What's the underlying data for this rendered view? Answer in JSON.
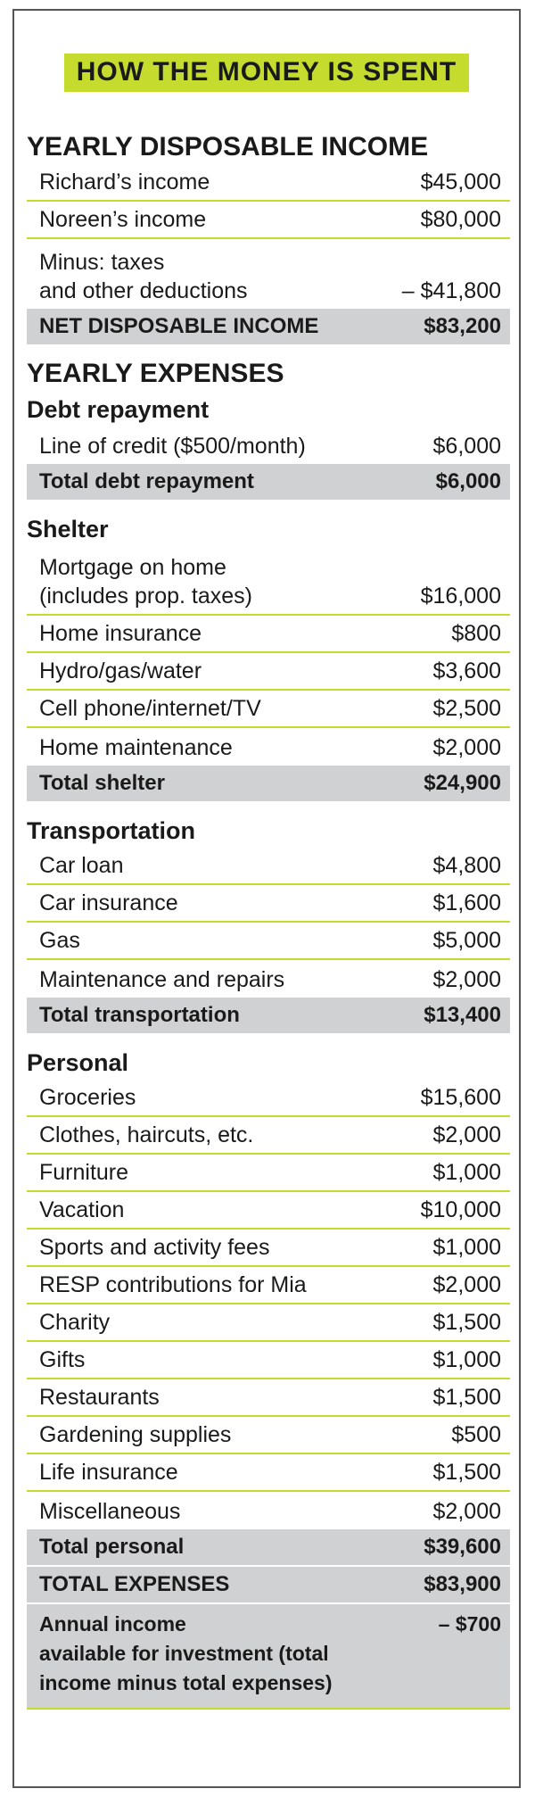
{
  "title": "HOW THE MONEY IS SPENT",
  "income": {
    "heading": "YEARLY DISPOSABLE INCOME",
    "rows": [
      {
        "label": "Richard’s income",
        "value": "$45,000"
      },
      {
        "label": "Noreen’s income",
        "value": "$80,000"
      },
      {
        "label": "Minus: taxes\nand other deductions",
        "value": "– $41,800"
      }
    ],
    "total": {
      "label": "NET DISPOSABLE INCOME",
      "value": "$83,200"
    }
  },
  "expenses_heading": "YEARLY EXPENSES",
  "debt": {
    "heading": "Debt repayment",
    "rows": [
      {
        "label": "Line of credit ($500/month)",
        "value": "$6,000"
      }
    ],
    "total": {
      "label": "Total debt repayment",
      "value": "$6,000"
    }
  },
  "shelter": {
    "heading": "Shelter",
    "rows": [
      {
        "label": "Mortgage on home\n(includes prop. taxes)",
        "value": "$16,000"
      },
      {
        "label": "Home insurance",
        "value": "$800"
      },
      {
        "label": "Hydro/gas/water",
        "value": "$3,600"
      },
      {
        "label": "Cell phone/internet/TV",
        "value": "$2,500"
      },
      {
        "label": "Home maintenance",
        "value": "$2,000"
      }
    ],
    "total": {
      "label": "Total shelter",
      "value": "$24,900"
    }
  },
  "transport": {
    "heading": "Transportation",
    "rows": [
      {
        "label": "Car loan",
        "value": "$4,800"
      },
      {
        "label": "Car insurance",
        "value": "$1,600"
      },
      {
        "label": "Gas",
        "value": "$5,000"
      },
      {
        "label": "Maintenance and repairs",
        "value": "$2,000"
      }
    ],
    "total": {
      "label": "Total transportation",
      "value": "$13,400"
    }
  },
  "personal": {
    "heading": "Personal",
    "rows": [
      {
        "label": "Groceries",
        "value": "$15,600"
      },
      {
        "label": "Clothes, haircuts, etc.",
        "value": "$2,000"
      },
      {
        "label": "Furniture",
        "value": "$1,000"
      },
      {
        "label": "Vacation",
        "value": "$10,000"
      },
      {
        "label": "Sports and activity fees",
        "value": "$1,000"
      },
      {
        "label": "RESP contributions for Mia",
        "value": "$2,000"
      },
      {
        "label": "Charity",
        "value": "$1,500"
      },
      {
        "label": "Gifts",
        "value": "$1,000"
      },
      {
        "label": "Restaurants",
        "value": "$1,500"
      },
      {
        "label": "Gardening supplies",
        "value": "$500"
      },
      {
        "label": "Life insurance",
        "value": "$1,500"
      },
      {
        "label": "Miscellaneous",
        "value": "$2,000"
      }
    ],
    "total": {
      "label": "Total personal",
      "value": "$39,600"
    }
  },
  "total_expenses": {
    "label": "TOTAL EXPENSES",
    "value": "$83,900"
  },
  "final": {
    "label": "Annual income\navailable for investment (total\nincome minus total expenses)",
    "value": "– $700"
  }
}
